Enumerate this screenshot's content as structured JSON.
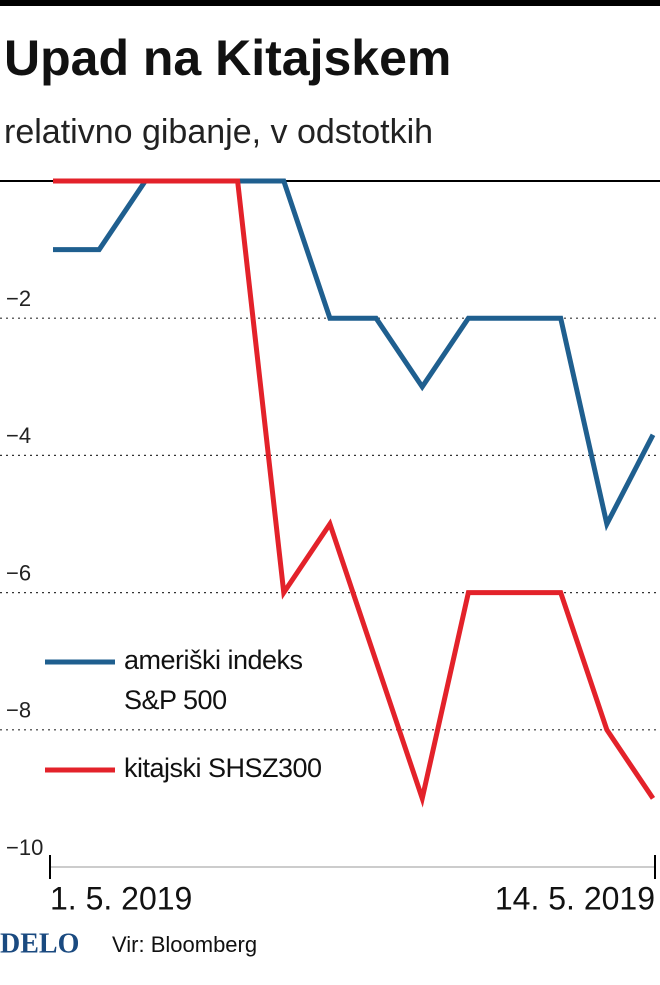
{
  "chart_data": {
    "type": "line",
    "title": "Upad na Kitajskem",
    "subtitle": "relativno gibanje, v odstotkih",
    "categories": [
      "1. 5. 2019",
      null,
      null,
      null,
      null,
      null,
      null,
      null,
      null,
      null,
      null,
      null,
      null,
      "14. 5. 2019"
    ],
    "series": [
      {
        "name": "ameriški indeks S&P 500",
        "color": "#1f5f8f",
        "values": [
          -1,
          -1,
          0,
          0,
          0,
          0,
          -2,
          -2,
          -3,
          -2,
          -2,
          -2,
          -5,
          -3.7
        ]
      },
      {
        "name": "kitajski SHSZ300",
        "color": "#e3222a",
        "values": [
          0,
          0,
          0,
          0,
          0,
          -6,
          -5,
          -7,
          -9,
          -6,
          -6,
          -6,
          -8,
          -9
        ]
      }
    ],
    "ylim": [
      -10,
      0
    ],
    "yticks": [
      {
        "value": -2,
        "label": "−2"
      },
      {
        "value": -4,
        "label": "−4"
      },
      {
        "value": -6,
        "label": "−6"
      },
      {
        "value": -8,
        "label": "−8"
      },
      {
        "value": -10,
        "label": "−10"
      }
    ],
    "grid": true,
    "brand": "DELO",
    "source": "Vir: Bloomberg"
  }
}
